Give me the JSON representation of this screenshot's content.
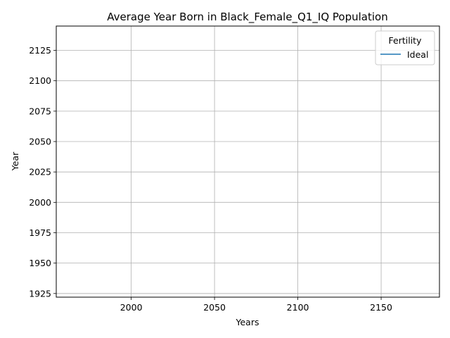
{
  "chart_data": {
    "type": "line",
    "title": "Average Year Born in Black_Female_Q1_IQ Population",
    "xlabel": "Years",
    "ylabel": "Year",
    "xlim": [
      1955,
      2185
    ],
    "ylim": [
      1922,
      2145
    ],
    "xticks": [
      2000,
      2050,
      2100,
      2150
    ],
    "yticks": [
      1925,
      1950,
      1975,
      2000,
      2025,
      2050,
      2075,
      2100,
      2125
    ],
    "grid": true,
    "legend": {
      "title": "Fertility",
      "placement": "upper right"
    },
    "series": [
      {
        "name": "Ideal",
        "color": "#1f77b4",
        "x": [],
        "y": []
      }
    ]
  }
}
